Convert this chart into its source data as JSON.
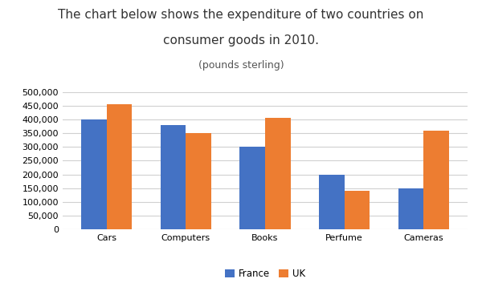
{
  "title_line1": "The chart below shows the expenditure of two countries on",
  "title_line2": "consumer goods in 2010.",
  "subtitle": "(pounds sterling)",
  "categories": [
    "Cars",
    "Computers",
    "Books",
    "Perfume",
    "Cameras"
  ],
  "france_values": [
    400000,
    380000,
    300000,
    200000,
    150000
  ],
  "uk_values": [
    455000,
    350000,
    405000,
    140000,
    360000
  ],
  "france_color": "#4472C4",
  "uk_color": "#ED7D31",
  "ylim": [
    0,
    500000
  ],
  "yticks": [
    0,
    50000,
    100000,
    150000,
    200000,
    250000,
    300000,
    350000,
    400000,
    450000,
    500000
  ],
  "bar_width": 0.32,
  "legend_labels": [
    "France",
    "UK"
  ],
  "background_color": "#ffffff",
  "grid_color": "#d0d0d0",
  "title_fontsize": 11,
  "subtitle_fontsize": 9,
  "tick_fontsize": 8,
  "legend_fontsize": 8.5
}
